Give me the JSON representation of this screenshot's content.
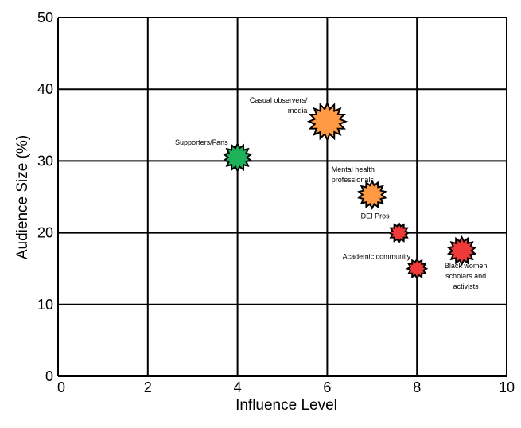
{
  "chart_data": {
    "type": "scatter",
    "xlabel": "Influence Level",
    "ylabel": "Audience Size (%)",
    "xlim": [
      0,
      10
    ],
    "ylim": [
      0,
      50
    ],
    "x_ticks": [
      0,
      2,
      4,
      6,
      8,
      10
    ],
    "y_ticks": [
      0,
      10,
      20,
      30,
      40,
      50
    ],
    "grid": true,
    "marker": "star-burst",
    "colors": {
      "green": "#1db15a",
      "orange": "#ff9944",
      "red": "#f03a3a"
    },
    "points": [
      {
        "label": [
          "Supporters/Fans"
        ],
        "x": 4,
        "y": 30.5,
        "size": "medium",
        "color": "#1db15a"
      },
      {
        "label": [
          "Casual observers/",
          "media"
        ],
        "x": 6,
        "y": 35.5,
        "size": "large",
        "color": "#ff9944"
      },
      {
        "label": [
          "Mental health",
          "professionals"
        ],
        "x": 7,
        "y": 25.3,
        "size": "medium",
        "color": "#ff9944"
      },
      {
        "label": [
          "DEI Pros"
        ],
        "x": 7.6,
        "y": 20,
        "size": "small",
        "color": "#f03a3a"
      },
      {
        "label": [
          "Academic community"
        ],
        "x": 8,
        "y": 15,
        "size": "small",
        "color": "#f03a3a"
      },
      {
        "label": [
          "Black women",
          "scholars and",
          "activists"
        ],
        "x": 9,
        "y": 17.5,
        "size": "medium",
        "color": "#f03a3a"
      }
    ]
  }
}
